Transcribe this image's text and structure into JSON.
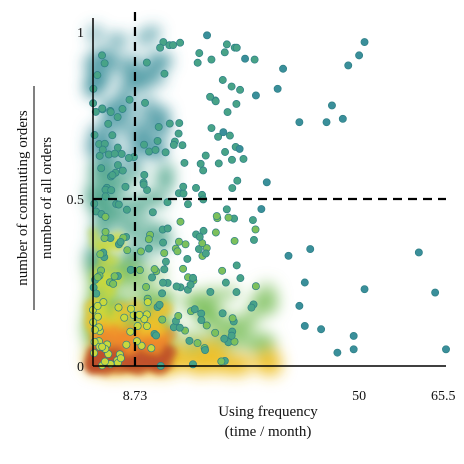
{
  "chart_data": {
    "type": "scatter",
    "subtype": "density-scatter",
    "title": "",
    "xlabel_lines": [
      "Using frequency",
      "(time / month)"
    ],
    "ylabel_numerator": "number of commuting orders",
    "ylabel_denominator": "number of all orders",
    "xlim": [
      1,
      66
    ],
    "ylim": [
      0,
      1
    ],
    "x_ticks": [
      {
        "value": 8.73,
        "label": "8.73"
      },
      {
        "value": 50,
        "label": "50"
      },
      {
        "value": 65.5,
        "label": "65.5"
      }
    ],
    "y_ticks": [
      {
        "value": 0,
        "label": "0"
      },
      {
        "value": 0.5,
        "label": "0.5"
      },
      {
        "value": 1,
        "label": "1"
      }
    ],
    "reference_lines": [
      {
        "orientation": "vertical",
        "value": 8.73,
        "style": "dashed"
      },
      {
        "orientation": "horizontal",
        "value": 0.5,
        "style": "dashed"
      }
    ],
    "grid": false,
    "legend": "none",
    "density_colors": [
      "#3a8f9a",
      "#48a387",
      "#7cc05c",
      "#c9d93d",
      "#f0c22a",
      "#f08a2a",
      "#c0502a"
    ],
    "outlier_points": [
      {
        "x": 51,
        "y": 0.97
      },
      {
        "x": 50,
        "y": 0.93
      },
      {
        "x": 48,
        "y": 0.9
      },
      {
        "x": 45,
        "y": 0.78
      },
      {
        "x": 47,
        "y": 0.74
      },
      {
        "x": 44,
        "y": 0.73
      },
      {
        "x": 39,
        "y": 0.73
      },
      {
        "x": 36,
        "y": 0.89
      },
      {
        "x": 35,
        "y": 0.83
      },
      {
        "x": 31,
        "y": 0.81
      },
      {
        "x": 33,
        "y": 0.55
      },
      {
        "x": 32,
        "y": 0.47
      },
      {
        "x": 41,
        "y": 0.35
      },
      {
        "x": 37,
        "y": 0.33
      },
      {
        "x": 40,
        "y": 0.25
      },
      {
        "x": 39,
        "y": 0.18
      },
      {
        "x": 40,
        "y": 0.12
      },
      {
        "x": 43,
        "y": 0.11
      },
      {
        "x": 51,
        "y": 0.23
      },
      {
        "x": 61,
        "y": 0.34
      },
      {
        "x": 64,
        "y": 0.22
      },
      {
        "x": 66,
        "y": 0.05
      },
      {
        "x": 49,
        "y": 0.09
      },
      {
        "x": 49,
        "y": 0.05
      },
      {
        "x": 46,
        "y": 0.04
      },
      {
        "x": 28,
        "y": 0.65
      },
      {
        "x": 29,
        "y": 0.92
      },
      {
        "x": 22,
        "y": 0.99
      },
      {
        "x": 25,
        "y": 0.7
      }
    ]
  },
  "colors": {
    "marker_edge": "#2e7f86",
    "reference_line": "#000000",
    "axis": "#000000"
  }
}
